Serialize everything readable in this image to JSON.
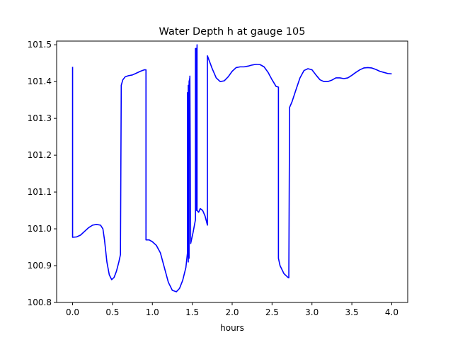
{
  "chart_data": {
    "type": "line",
    "title": "Water Depth h at gauge 105",
    "xlabel": "hours",
    "ylabel": "",
    "xlim": [
      -0.2,
      4.2
    ],
    "ylim": [
      100.8,
      101.51
    ],
    "xticks": [
      0.0,
      0.5,
      1.0,
      1.5,
      2.0,
      2.5,
      3.0,
      3.5,
      4.0
    ],
    "xtick_labels": [
      "0.0",
      "0.5",
      "1.0",
      "1.5",
      "2.0",
      "2.5",
      "3.0",
      "3.5",
      "4.0"
    ],
    "yticks": [
      100.8,
      100.9,
      101.0,
      101.1,
      101.2,
      101.3,
      101.4,
      101.5
    ],
    "ytick_labels": [
      "100.8",
      "100.9",
      "101.0",
      "101.1",
      "101.2",
      "101.3",
      "101.4",
      "101.5"
    ],
    "grid": false,
    "legend": "none",
    "series": [
      {
        "color": "#0000ff",
        "x": [
          0.0,
          0.0,
          0.05,
          0.1,
          0.15,
          0.2,
          0.25,
          0.3,
          0.35,
          0.38,
          0.4,
          0.43,
          0.46,
          0.49,
          0.52,
          0.55,
          0.58,
          0.6,
          0.61,
          0.63,
          0.66,
          0.7,
          0.75,
          0.8,
          0.85,
          0.9,
          0.92,
          0.92,
          0.96,
          1.0,
          1.05,
          1.1,
          1.15,
          1.2,
          1.25,
          1.3,
          1.34,
          1.38,
          1.42,
          1.44,
          1.44,
          1.45,
          1.45,
          1.46,
          1.46,
          1.47,
          1.47,
          1.48,
          1.48,
          1.51,
          1.54,
          1.54,
          1.55,
          1.55,
          1.56,
          1.56,
          1.58,
          1.6,
          1.63,
          1.66,
          1.69,
          1.69,
          1.75,
          1.8,
          1.85,
          1.9,
          1.95,
          2.0,
          2.05,
          2.1,
          2.15,
          2.2,
          2.25,
          2.3,
          2.35,
          2.4,
          2.45,
          2.5,
          2.55,
          2.58,
          2.58,
          2.6,
          2.65,
          2.7,
          2.71,
          2.72,
          2.75,
          2.8,
          2.85,
          2.9,
          2.95,
          3.0,
          3.05,
          3.1,
          3.15,
          3.2,
          3.25,
          3.3,
          3.35,
          3.4,
          3.45,
          3.5,
          3.55,
          3.6,
          3.65,
          3.7,
          3.75,
          3.8,
          3.85,
          3.9,
          3.95,
          4.0
        ],
        "y": [
          101.44,
          100.977,
          100.978,
          100.983,
          100.993,
          101.003,
          101.01,
          101.012,
          101.01,
          101.0,
          100.97,
          100.91,
          100.875,
          100.862,
          100.868,
          100.885,
          100.91,
          100.93,
          101.39,
          101.405,
          101.413,
          101.416,
          101.418,
          101.423,
          101.428,
          101.432,
          101.432,
          100.97,
          100.97,
          100.965,
          100.955,
          100.935,
          100.895,
          100.855,
          100.833,
          100.829,
          100.838,
          100.86,
          100.895,
          100.935,
          101.37,
          100.91,
          101.39,
          100.92,
          101.4,
          101.41,
          101.415,
          100.96,
          100.96,
          100.99,
          101.025,
          101.49,
          101.49,
          101.05,
          101.5,
          101.05,
          101.045,
          101.055,
          101.05,
          101.035,
          101.01,
          101.47,
          101.435,
          101.41,
          101.4,
          101.402,
          101.413,
          101.428,
          101.438,
          101.44,
          101.44,
          101.442,
          101.445,
          101.447,
          101.446,
          101.44,
          101.425,
          101.405,
          101.387,
          101.385,
          100.92,
          100.9,
          100.878,
          100.868,
          100.867,
          101.33,
          101.345,
          101.378,
          101.41,
          101.43,
          101.435,
          101.432,
          101.418,
          101.405,
          101.4,
          101.4,
          101.404,
          101.41,
          101.41,
          101.408,
          101.41,
          101.417,
          101.425,
          101.432,
          101.437,
          101.438,
          101.437,
          101.433,
          101.428,
          101.425,
          101.422,
          101.421
        ]
      }
    ]
  }
}
